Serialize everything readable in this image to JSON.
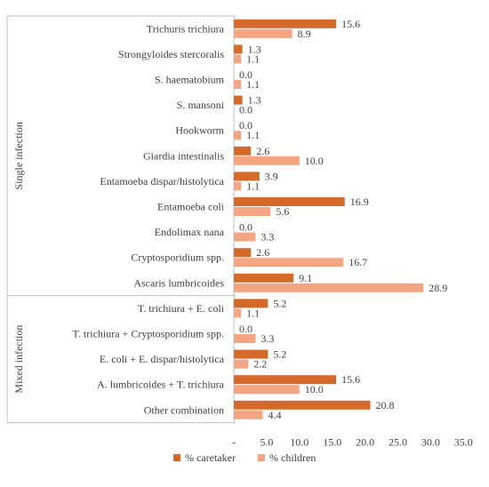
{
  "chart_data": {
    "type": "bar",
    "orientation": "horizontal",
    "groups": [
      {
        "label": "Single infection",
        "categories": [
          "Trichuris trichiura",
          "Strongyloides stercoralis",
          "S. haematobium",
          "S. mansoni",
          "Hookworm",
          "Giardia intestinalis",
          "Entamoeba dispar/histolytica",
          "Entamoeba coli",
          "Endolimax nana",
          "Cryptosporidium spp.",
          "Ascaris lumbricoides"
        ]
      },
      {
        "label": "Mixed infection",
        "categories": [
          "T. trichiura + E. coli",
          "T. trichiura + Cryptosporidium spp.",
          "E. coli + E. dispar/histolytica",
          "A. lumbricoides + T. trichiura",
          "Other combination"
        ]
      }
    ],
    "series": [
      {
        "name": "% caretaker",
        "color": "#D4692A",
        "values": [
          15.6,
          1.3,
          0.0,
          1.3,
          0.0,
          2.6,
          3.9,
          16.9,
          0.0,
          2.6,
          9.1,
          5.2,
          0.0,
          5.2,
          15.6,
          20.8
        ],
        "labels": [
          "15.6",
          "1.3",
          "0.0",
          "1.3",
          "0.0",
          "2.6",
          "3.9",
          "16.9",
          "0.0",
          "2.6",
          "9.1",
          "5.2",
          "0.0",
          "5.2",
          "15.6",
          "20.8"
        ]
      },
      {
        "name": "% children",
        "color": "#F4A582",
        "values": [
          8.9,
          1.1,
          1.1,
          0.0,
          1.1,
          10.0,
          1.1,
          5.6,
          3.3,
          16.7,
          28.9,
          1.1,
          3.3,
          2.2,
          10.0,
          4.4
        ],
        "labels": [
          "8.9",
          "1.1",
          "1.1",
          "0.0",
          "1.1",
          "10.0",
          "1.1",
          "5.6",
          "3.3",
          "16.7",
          "28.9",
          "1.1",
          "3.3",
          "2.2",
          "10.0",
          "4.4"
        ]
      }
    ],
    "xlim": [
      0,
      35
    ],
    "xticks": [
      "-",
      "5.0",
      "10.0",
      "15.0",
      "20.0",
      "25.0",
      "30.0",
      "35.0"
    ],
    "grid": false,
    "legend_position": "bottom"
  }
}
